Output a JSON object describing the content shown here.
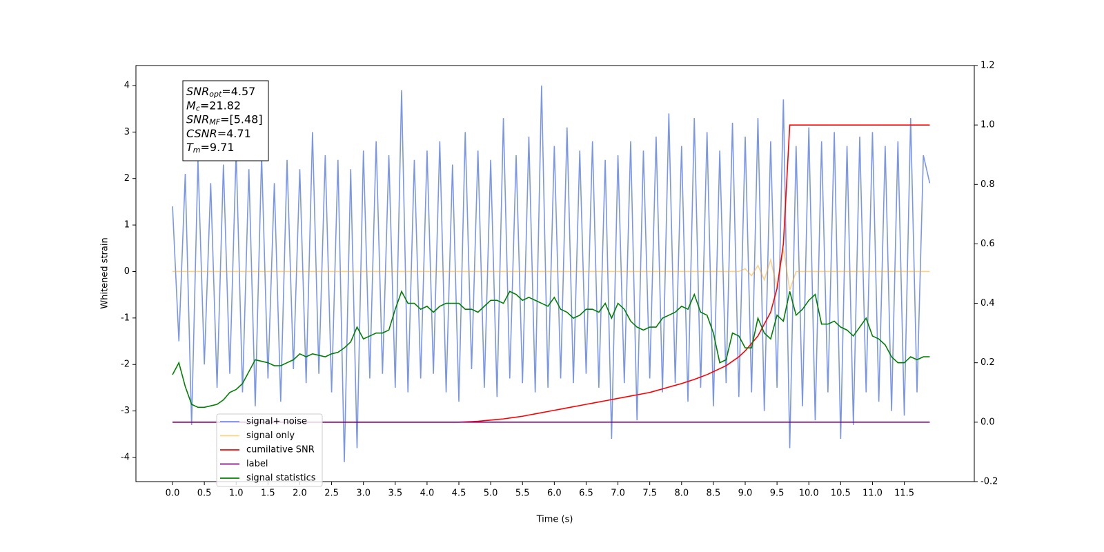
{
  "chart_data": {
    "type": "line",
    "xlabel": "Time (s)",
    "ylabel": "Whitened strain",
    "x": [
      0,
      0.1,
      0.2,
      0.3,
      0.4,
      0.5,
      0.6,
      0.7,
      0.8,
      0.9,
      1,
      1.1,
      1.2,
      1.3,
      1.4,
      1.5,
      1.6,
      1.7,
      1.8,
      1.9,
      2,
      2.1,
      2.2,
      2.3,
      2.4,
      2.5,
      2.6,
      2.7,
      2.8,
      2.9,
      3,
      3.1,
      3.2,
      3.3,
      3.4,
      3.5,
      3.6,
      3.7,
      3.8,
      3.9,
      4,
      4.1,
      4.2,
      4.3,
      4.4,
      4.5,
      4.6,
      4.7,
      4.8,
      4.9,
      5,
      5.1,
      5.2,
      5.3,
      5.4,
      5.5,
      5.6,
      5.7,
      5.8,
      5.9,
      6,
      6.1,
      6.2,
      6.3,
      6.4,
      6.5,
      6.6,
      6.7,
      6.8,
      6.9,
      7,
      7.1,
      7.2,
      7.3,
      7.4,
      7.5,
      7.6,
      7.7,
      7.8,
      7.9,
      8,
      8.1,
      8.2,
      8.3,
      8.4,
      8.5,
      8.6,
      8.7,
      8.8,
      8.9,
      9,
      9.1,
      9.2,
      9.3,
      9.4,
      9.5,
      9.6,
      9.7,
      9.8,
      9.9,
      10,
      10.1,
      10.2,
      10.3,
      10.4,
      10.5,
      10.6,
      10.7,
      10.8,
      10.9,
      11,
      11.1,
      11.2,
      11.3,
      11.4,
      11.5,
      11.6,
      11.7,
      11.8,
      11.9
    ],
    "series": [
      {
        "name": "signal+ noise",
        "color": "#4169e1",
        "alpha": 0.7,
        "axis": "y",
        "values": [
          1.4,
          -1.5,
          2.1,
          -3.3,
          2.4,
          -2.0,
          1.9,
          -2.5,
          2.3,
          -2.2,
          2.6,
          -2.6,
          2.2,
          -2.9,
          2.5,
          -2.3,
          1.9,
          -2.8,
          2.4,
          -2.1,
          2.2,
          -2.4,
          3.0,
          -2.2,
          2.5,
          -2.6,
          2.4,
          -4.1,
          2.2,
          -3.8,
          2.6,
          -2.3,
          2.8,
          -2.2,
          2.5,
          -2.5,
          3.9,
          -2.6,
          2.4,
          -2.3,
          2.6,
          -2.2,
          2.8,
          -2.6,
          2.3,
          -2.8,
          3.0,
          -2.1,
          2.6,
          -2.5,
          2.4,
          -2.7,
          3.3,
          -2.3,
          2.5,
          -2.4,
          2.9,
          -2.6,
          4.0,
          -2.5,
          2.7,
          -2.3,
          3.1,
          -2.4,
          2.6,
          -2.2,
          2.8,
          -2.5,
          2.4,
          -3.6,
          2.5,
          -2.4,
          2.8,
          -3.2,
          2.6,
          -2.3,
          2.9,
          -2.6,
          3.4,
          -2.4,
          2.7,
          -2.8,
          3.3,
          -2.5,
          3.0,
          -2.9,
          2.6,
          -2.4,
          3.2,
          -2.7,
          2.9,
          -2.6,
          3.3,
          -3.0,
          2.8,
          -2.5,
          3.7,
          -3.8,
          2.7,
          -2.9,
          3.1,
          -3.2,
          2.8,
          -2.6,
          3.0,
          -3.6,
          2.7,
          -3.3,
          2.9,
          -2.6,
          3.0,
          -2.8,
          2.7,
          -3.0,
          2.8,
          -3.1,
          3.3,
          -2.6,
          2.5,
          1.9
        ]
      },
      {
        "name": "signal only",
        "color": "#ffa500",
        "alpha": 0.5,
        "axis": "y",
        "values": [
          0,
          0,
          0,
          0,
          0,
          0,
          0,
          0,
          0,
          0,
          0,
          0,
          0,
          0,
          0,
          0,
          0,
          0,
          0,
          0,
          0,
          0,
          0,
          0,
          0,
          0,
          0,
          0,
          0,
          0,
          0,
          0,
          0,
          0,
          0,
          0,
          0,
          0,
          0,
          0,
          0,
          0,
          0,
          0,
          0,
          0,
          0,
          0,
          0,
          0,
          0,
          0,
          0,
          0,
          0,
          0,
          0,
          0,
          0,
          0,
          0,
          0,
          0,
          0,
          0,
          0,
          0,
          0,
          0,
          0,
          0,
          0,
          0,
          0,
          0,
          0,
          0,
          0,
          0,
          0,
          0,
          0,
          0,
          0,
          0,
          0,
          0,
          0,
          0,
          0,
          0.06,
          -0.09,
          0.13,
          -0.18,
          0.25,
          -0.35,
          0.5,
          -0.4,
          0,
          0,
          0,
          0,
          0,
          0,
          0,
          0,
          0,
          0,
          0,
          0,
          0,
          0,
          0,
          0,
          0,
          0,
          0,
          0,
          0,
          0
        ]
      },
      {
        "name": "cumilative SNR",
        "color": "#ff0000",
        "alpha": 1,
        "axis": "y2",
        "values": [
          0,
          0,
          0,
          0,
          0,
          0,
          0,
          0,
          0,
          0,
          0,
          0,
          0,
          0,
          0,
          0,
          0,
          0,
          0,
          0,
          0,
          0,
          0,
          0,
          0,
          0,
          0,
          0,
          0,
          0,
          0,
          0,
          0,
          0,
          0,
          0,
          0,
          0,
          0,
          0,
          0,
          0,
          0,
          0,
          0,
          0,
          0.001,
          0.002,
          0.003,
          0.005,
          0.007,
          0.009,
          0.011,
          0.014,
          0.017,
          0.02,
          0.024,
          0.028,
          0.032,
          0.036,
          0.04,
          0.044,
          0.048,
          0.052,
          0.056,
          0.06,
          0.064,
          0.068,
          0.072,
          0.076,
          0.08,
          0.084,
          0.088,
          0.092,
          0.096,
          0.1,
          0.106,
          0.112,
          0.118,
          0.124,
          0.13,
          0.137,
          0.144,
          0.152,
          0.16,
          0.17,
          0.18,
          0.19,
          0.205,
          0.22,
          0.24,
          0.265,
          0.29,
          0.33,
          0.37,
          0.45,
          0.6,
          1,
          1,
          1,
          1,
          1,
          1,
          1,
          1,
          1,
          1,
          1,
          1,
          1,
          1,
          1,
          1,
          1,
          1,
          1,
          1,
          1,
          1,
          1
        ]
      },
      {
        "name": "label",
        "color": "#800080",
        "alpha": 1,
        "axis": "y2",
        "values": [
          0,
          0,
          0,
          0,
          0,
          0,
          0,
          0,
          0,
          0,
          0,
          0,
          0,
          0,
          0,
          0,
          0,
          0,
          0,
          0,
          0,
          0,
          0,
          0,
          0,
          0,
          0,
          0,
          0,
          0,
          0,
          0,
          0,
          0,
          0,
          0,
          0,
          0,
          0,
          0,
          0,
          0,
          0,
          0,
          0,
          0,
          0,
          0,
          0,
          0,
          0,
          0,
          0,
          0,
          0,
          0,
          0,
          0,
          0,
          0,
          0,
          0,
          0,
          0,
          0,
          0,
          0,
          0,
          0,
          0,
          0,
          0,
          0,
          0,
          0,
          0,
          0,
          0,
          0,
          0,
          0,
          0,
          0,
          0,
          0,
          0,
          0,
          0,
          0,
          0,
          0,
          0,
          0,
          0,
          0,
          0,
          0,
          0,
          0,
          0,
          0,
          0,
          0,
          0,
          0,
          0,
          0,
          0,
          0,
          0,
          0,
          0,
          0,
          0,
          0,
          0,
          0,
          0,
          0,
          0
        ]
      },
      {
        "name": "signal statistics",
        "color": "#008000",
        "alpha": 1,
        "axis": "y2",
        "values": [
          0.16,
          0.2,
          0.12,
          0.06,
          0.05,
          0.05,
          0.055,
          0.06,
          0.075,
          0.1,
          0.11,
          0.13,
          0.17,
          0.21,
          0.205,
          0.2,
          0.19,
          0.19,
          0.2,
          0.21,
          0.23,
          0.22,
          0.23,
          0.225,
          0.22,
          0.23,
          0.235,
          0.25,
          0.27,
          0.32,
          0.28,
          0.29,
          0.3,
          0.3,
          0.31,
          0.38,
          0.44,
          0.4,
          0.4,
          0.38,
          0.39,
          0.37,
          0.39,
          0.4,
          0.4,
          0.4,
          0.38,
          0.38,
          0.37,
          0.39,
          0.41,
          0.41,
          0.4,
          0.44,
          0.43,
          0.41,
          0.42,
          0.41,
          0.4,
          0.39,
          0.42,
          0.38,
          0.37,
          0.35,
          0.36,
          0.38,
          0.38,
          0.37,
          0.4,
          0.35,
          0.4,
          0.38,
          0.34,
          0.32,
          0.31,
          0.32,
          0.32,
          0.35,
          0.36,
          0.37,
          0.39,
          0.38,
          0.43,
          0.37,
          0.36,
          0.3,
          0.2,
          0.21,
          0.3,
          0.29,
          0.25,
          0.25,
          0.35,
          0.3,
          0.28,
          0.36,
          0.34,
          0.44,
          0.36,
          0.38,
          0.41,
          0.43,
          0.33,
          0.33,
          0.34,
          0.32,
          0.31,
          0.29,
          0.32,
          0.35,
          0.29,
          0.28,
          0.26,
          0.22,
          0.2,
          0.2,
          0.22,
          0.21,
          0.22,
          0.22
        ]
      }
    ],
    "xlim": [
      -0.575,
      12.6
    ],
    "xticks": [
      {
        "value": 0,
        "label": "0.0"
      },
      0.5,
      {
        "value": 1,
        "label": "1.0"
      },
      1.5,
      {
        "value": 2,
        "label": "2.0"
      },
      2.5,
      {
        "value": 3,
        "label": "3.0"
      },
      3.5,
      {
        "value": 4,
        "label": "4.0"
      },
      4.5,
      {
        "value": 5,
        "label": "5.0"
      },
      5.5,
      {
        "value": 6,
        "label": "6.0"
      },
      6.5,
      {
        "value": 7,
        "label": "7.0"
      },
      7.5,
      {
        "value": 8,
        "label": "8.0"
      },
      8.5,
      {
        "value": 9,
        "label": "9.0"
      },
      9.5,
      {
        "value": 10,
        "label": "10.0"
      },
      10.5,
      {
        "value": 11,
        "label": "11.0"
      },
      11.5
    ],
    "ylim": [
      -4.52,
      4.43
    ],
    "yticks": [
      -4,
      -3,
      -2,
      -1,
      0,
      1,
      2,
      3,
      4
    ],
    "y2lim": [
      -0.2,
      1.2
    ],
    "y2ticks": [
      -0.2,
      {
        "value": 0,
        "label": "0.0"
      },
      0.2,
      0.4,
      0.6,
      0.8,
      {
        "value": 1,
        "label": "1.0"
      },
      1.2
    ],
    "legend": "lower left",
    "annotations": [
      {
        "symbol": "SNR",
        "subscript": "opt",
        "text": "=4.57"
      },
      {
        "symbol": "M",
        "subscript": "c",
        "text": "=21.82"
      },
      {
        "symbol": "SNR",
        "subscript": "MF",
        "text": "=[5.48]"
      },
      {
        "symbol": "CSNR",
        "text": "=4.71"
      },
      {
        "symbol": "T",
        "subscript": "m",
        "text": "=9.71"
      }
    ]
  }
}
